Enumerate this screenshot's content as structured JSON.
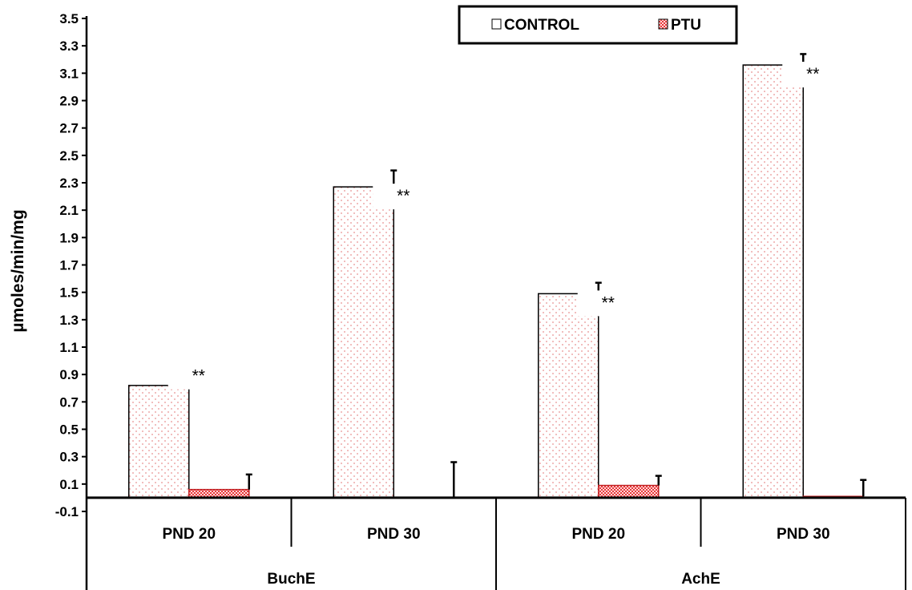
{
  "chart_data": {
    "type": "bar",
    "ylabel": "µmoles/min/mg",
    "ylim": [
      -0.1,
      3.5
    ],
    "yticks": [
      "3.5",
      "3.3",
      "3.1",
      "2.9",
      "2.7",
      "2.5",
      "2.3",
      "2.1",
      "1.9",
      "1.7",
      "1.5",
      "1.3",
      "1.1",
      "0.9",
      "0.7",
      "0.5",
      "0.3",
      "0.1",
      "-0.1"
    ],
    "groups": [
      "BuchE",
      "AchE"
    ],
    "categories": [
      "PND 20",
      "PND 30",
      "PND 20",
      "PND 30"
    ],
    "category_group": [
      0,
      0,
      1,
      1
    ],
    "series": [
      {
        "name": "CONTROL",
        "values": [
          0.82,
          2.27,
          1.49,
          3.16
        ],
        "errors": [
          0.0,
          0.12,
          0.08,
          0.08
        ]
      },
      {
        "name": "PTU",
        "values": [
          0.06,
          0.0,
          0.09,
          0.01
        ],
        "errors": [
          0.11,
          0.26,
          0.07,
          0.12
        ]
      }
    ],
    "annotations": [
      "**",
      "**",
      "**",
      "**"
    ],
    "legend_position": "top",
    "grid": false,
    "colors": {
      "control_fill": "#f7c9c9",
      "ptu_fill": "#e8383a",
      "axis": "#000000"
    }
  }
}
